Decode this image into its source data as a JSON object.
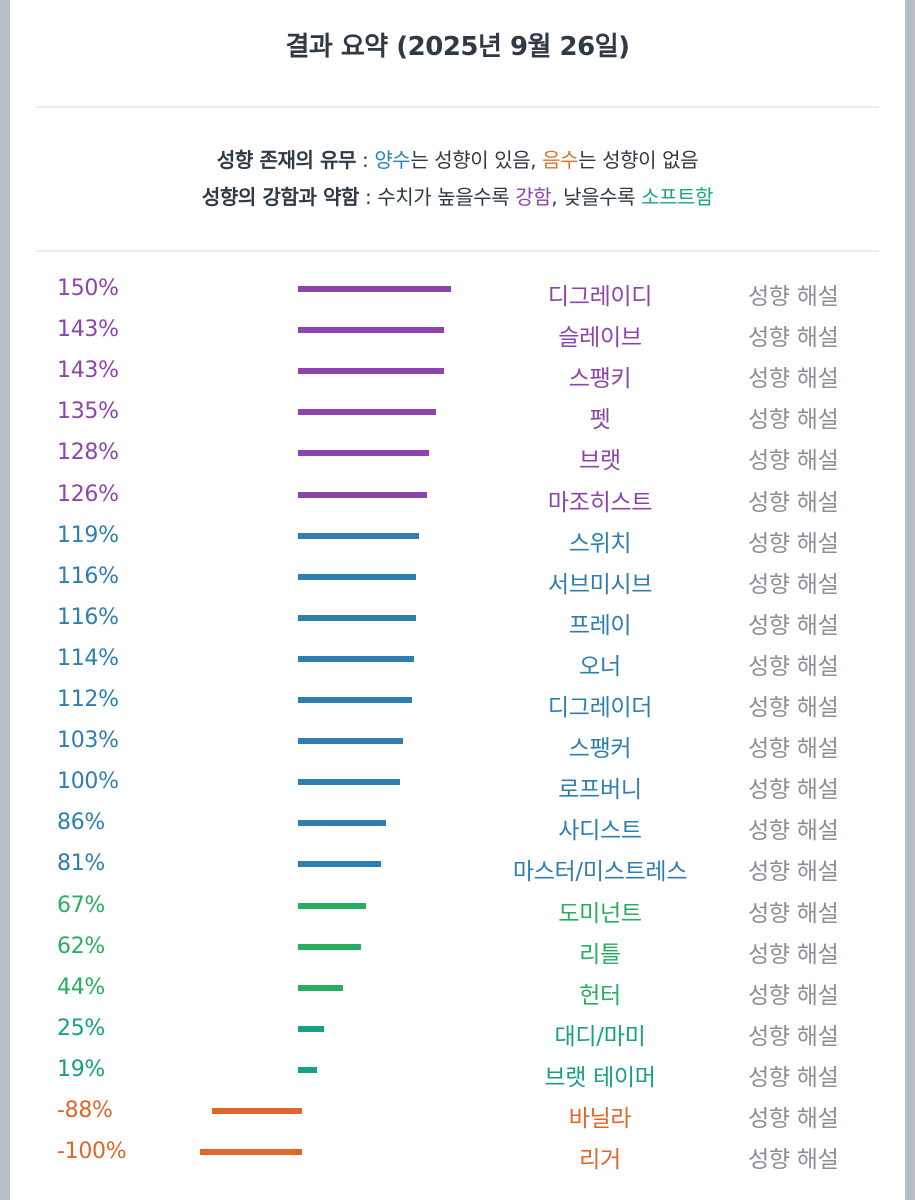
{
  "header": {
    "title": "결과 요약 (2025년 9월 26일)"
  },
  "legend": {
    "line1": {
      "label": "성향 존재의 유무",
      "sep": " : ",
      "positive": "양수",
      "mid1": "는 성향이 있음, ",
      "negative": "음수",
      "mid2": "는 성향이 없음"
    },
    "line2": {
      "label": "성향의 강함과 약함",
      "sep": " : 수치가 높을수록 ",
      "strong": "강함",
      "mid": ", 낮을수록 ",
      "soft": "소프트함"
    }
  },
  "colors": {
    "purple": "#8e44ad",
    "blue": "#2e7fb0",
    "green": "#27ae60",
    "teal": "#16a085",
    "orange": "#e0662a"
  },
  "detail_label": "성향 해설",
  "chart_data": {
    "type": "bar",
    "orientation": "horizontal",
    "categories": [
      "디그레이디",
      "슬레이브",
      "스팽키",
      "펫",
      "브랫",
      "마조히스트",
      "스위치",
      "서브미시브",
      "프레이",
      "오너",
      "디그레이더",
      "스팽커",
      "로프버니",
      "사디스트",
      "마스터/미스트레스",
      "도미넌트",
      "리틀",
      "헌터",
      "대디/마미",
      "브랫 테이머",
      "바닐라",
      "리거"
    ],
    "values": [
      150,
      143,
      143,
      135,
      128,
      126,
      119,
      116,
      116,
      114,
      112,
      103,
      100,
      86,
      81,
      67,
      62,
      44,
      25,
      19,
      -88,
      -100
    ],
    "labels": [
      "150%",
      "143%",
      "143%",
      "135%",
      "128%",
      "126%",
      "119%",
      "116%",
      "116%",
      "114%",
      "112%",
      "103%",
      "100%",
      "86%",
      "81%",
      "67%",
      "62%",
      "44%",
      "25%",
      "19%",
      "-88%",
      "-100%"
    ],
    "color_groups": [
      "purple",
      "purple",
      "purple",
      "purple",
      "purple",
      "purple",
      "blue",
      "blue",
      "blue",
      "blue",
      "blue",
      "blue",
      "blue",
      "blue",
      "blue",
      "green",
      "green",
      "green",
      "teal",
      "teal",
      "orange",
      "orange"
    ],
    "unit": "%"
  }
}
